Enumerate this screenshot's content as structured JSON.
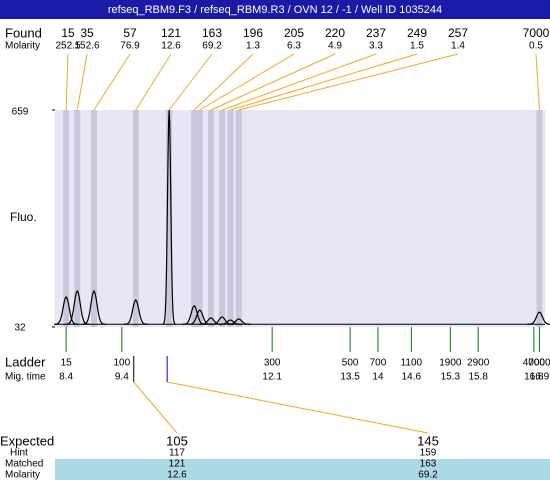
{
  "title": "refseq_RBM9.F3 / refseq_RBM9.R3 / OVN 12 / -1 / Well ID 1035244",
  "chart_data": {
    "type": "electropherogram",
    "found_label": "Found",
    "molarity_label": "Molarity",
    "y_label": "Fluo.",
    "ylim": [
      32,
      659
    ],
    "yticks": [
      32,
      659
    ],
    "xlim": [
      8.2,
      17.0
    ],
    "baseline": 40,
    "peaks": {
      "sizes": [
        15,
        35,
        57,
        121,
        163,
        196,
        205,
        220,
        237,
        249,
        257,
        7000
      ],
      "molarity": [
        252.5,
        152.6,
        76.9,
        12.6,
        69.2,
        1.3,
        6.3,
        4.9,
        3.3,
        1.5,
        1.4,
        0.5
      ],
      "times": [
        8.4,
        8.6,
        8.9,
        9.65,
        10.25,
        10.7,
        10.8,
        11.0,
        11.2,
        11.35,
        11.5,
        16.9
      ],
      "heights": [
        119,
        136,
        136,
        110,
        659,
        93,
        81,
        58,
        61,
        52,
        55,
        75
      ]
    },
    "ladder_label": "Ladder",
    "time_label": "Mig. time",
    "ladder": {
      "sizes": [
        15,
        100,
        300,
        500,
        700,
        1100,
        1900,
        2900,
        4000,
        7000
      ],
      "times": [
        8.4,
        9.4,
        12.1,
        13.5,
        14,
        14.6,
        15.3,
        15.8,
        16.8,
        16.9
      ]
    }
  },
  "expected_table": {
    "row_labels": [
      "Expected",
      "Hint",
      "Matched",
      "Molarity"
    ],
    "columns": [
      [
        105,
        117,
        121,
        12.6
      ],
      [
        145,
        159,
        163,
        69.2
      ]
    ]
  }
}
